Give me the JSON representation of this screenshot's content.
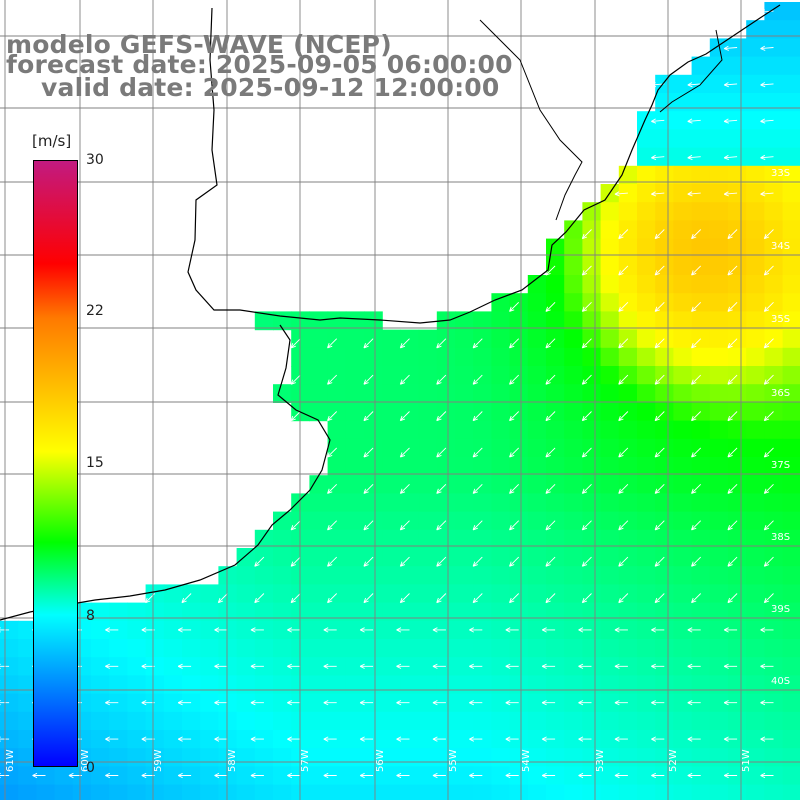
{
  "header": {
    "model": "modelo GEFS-WAVE (NCEP)",
    "forecast": "forecast date: 2025-09-05 06:00:00",
    "valid": "valid date: 2025-09-12 12:00:00"
  },
  "legend": {
    "units": "[m/s]",
    "ticks": [
      "30",
      "22",
      "15",
      "8",
      "0"
    ],
    "range": [
      0,
      30
    ],
    "colors": [
      "#0000ff",
      "#00ffff",
      "#00ff00",
      "#ffff00",
      "#ff7a00",
      "#ff0000",
      "#c21a80"
    ]
  },
  "map": {
    "lat_labels": [
      "33S",
      "34S",
      "35S",
      "36S",
      "37S",
      "38S",
      "39S",
      "40S"
    ],
    "lon_labels": [
      "61W",
      "60W",
      "59W",
      "58W",
      "57W",
      "56W",
      "55W",
      "54W",
      "53W",
      "52W",
      "51W"
    ],
    "grid_color": "#808080",
    "coast_color": "#000000",
    "arrow_color": "#ffffff"
  }
}
